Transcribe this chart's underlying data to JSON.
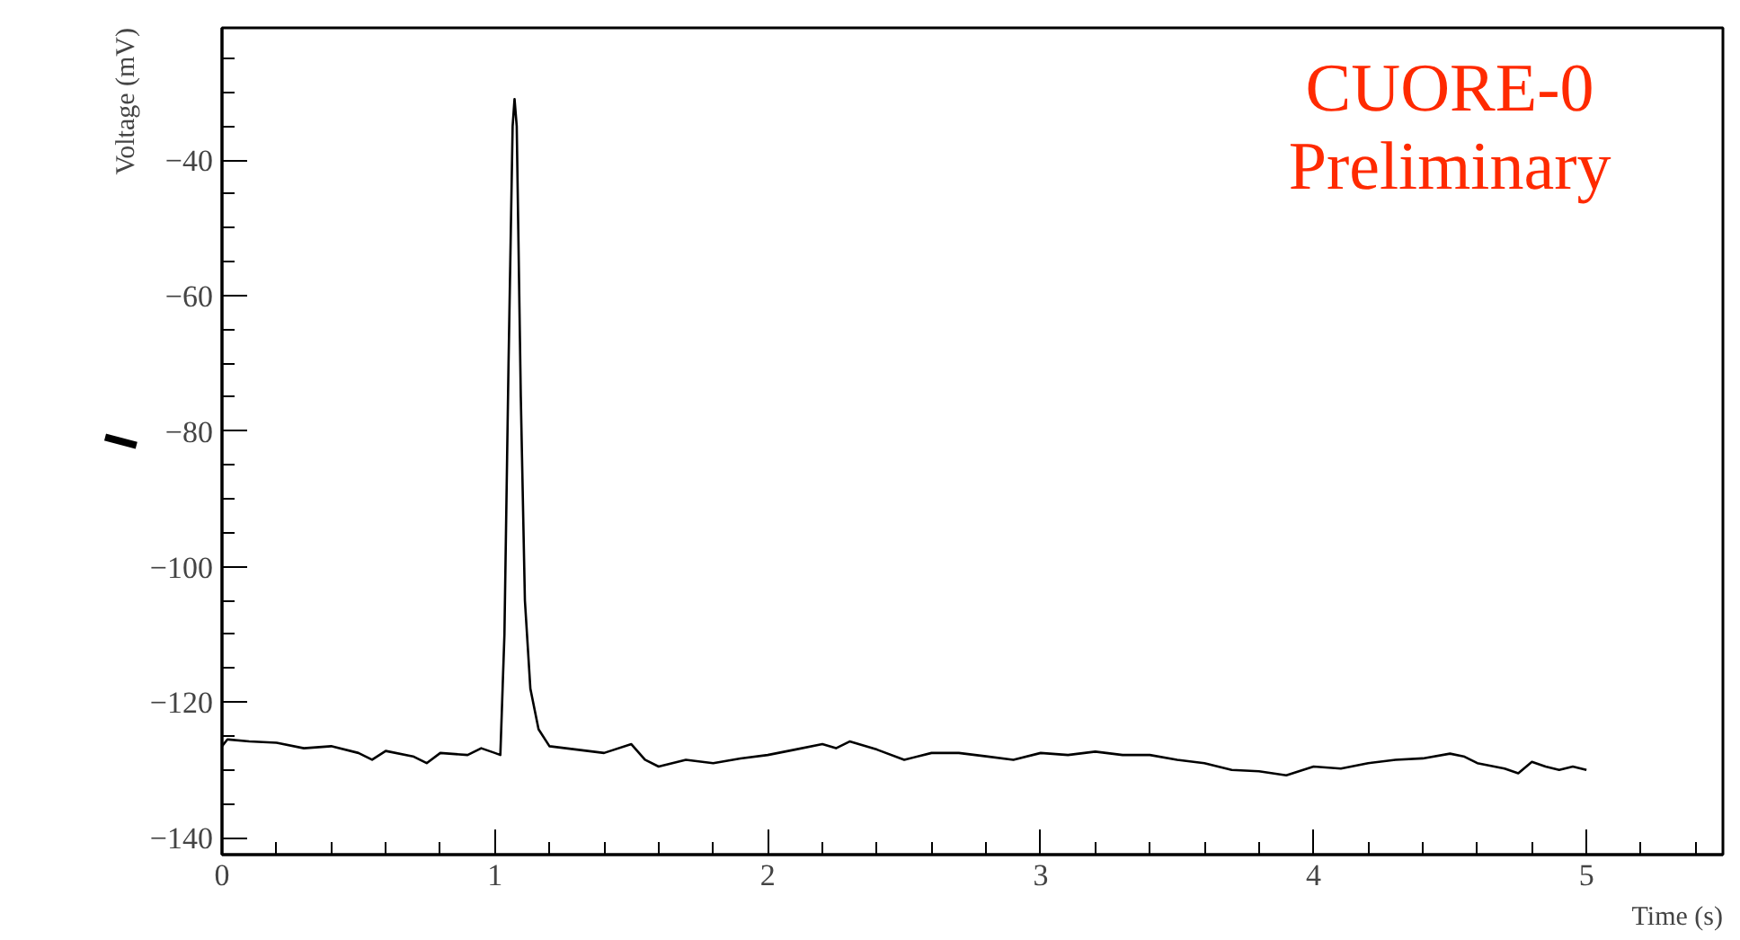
{
  "chart_data": {
    "type": "line",
    "xlabel": "Time (s)",
    "ylabel": "Voltage (mV)",
    "annotations": [
      "CUORE-0",
      "Preliminary"
    ],
    "xlim": [
      0,
      5.5
    ],
    "xticks": [
      0,
      1,
      2,
      3,
      4,
      5
    ],
    "ylim": [
      -142.5,
      -20.5
    ],
    "yticks": [
      -140,
      -120,
      -100,
      -80,
      -60,
      -40
    ],
    "grid": false,
    "marker": "none",
    "line_style": "solid",
    "series": [
      {
        "color": "#000000",
        "x": [
          0,
          0.02,
          0.1,
          0.2,
          0.3,
          0.4,
          0.5,
          0.55,
          0.6,
          0.7,
          0.75,
          0.8,
          0.9,
          0.95,
          1.0,
          1.02,
          1.035,
          1.05,
          1.065,
          1.072,
          1.08,
          1.095,
          1.11,
          1.13,
          1.16,
          1.2,
          1.3,
          1.4,
          1.5,
          1.55,
          1.6,
          1.7,
          1.8,
          1.9,
          2.0,
          2.1,
          2.2,
          2.25,
          2.3,
          2.4,
          2.5,
          2.6,
          2.7,
          2.8,
          2.9,
          3.0,
          3.1,
          3.2,
          3.3,
          3.4,
          3.5,
          3.6,
          3.7,
          3.8,
          3.9,
          4.0,
          4.1,
          4.2,
          4.3,
          4.4,
          4.5,
          4.55,
          4.6,
          4.7,
          4.75,
          4.8,
          4.85,
          4.9,
          4.95,
          5.0
        ],
        "values": [
          -126.5,
          -125.5,
          -125.8,
          -126.0,
          -126.8,
          -126.5,
          -127.5,
          -128.5,
          -127.2,
          -128.0,
          -129.0,
          -127.5,
          -127.8,
          -126.8,
          -127.5,
          -127.8,
          -110,
          -70,
          -35,
          -31,
          -35,
          -75,
          -105,
          -118,
          -124,
          -126.5,
          -127.0,
          -127.5,
          -126.2,
          -128.5,
          -129.5,
          -128.5,
          -129.0,
          -128.3,
          -127.8,
          -127.0,
          -126.2,
          -126.8,
          -125.8,
          -127.0,
          -128.5,
          -127.5,
          -127.5,
          -128.0,
          -128.5,
          -127.5,
          -127.8,
          -127.3,
          -127.8,
          -127.8,
          -128.5,
          -129.0,
          -130.0,
          -130.2,
          -130.8,
          -129.5,
          -129.8,
          -129.0,
          -128.5,
          -128.3,
          -127.6,
          -128.0,
          -129.0,
          -129.8,
          -130.5,
          -128.8,
          -129.5,
          -130.0,
          -129.5,
          -130.0
        ]
      }
    ]
  }
}
